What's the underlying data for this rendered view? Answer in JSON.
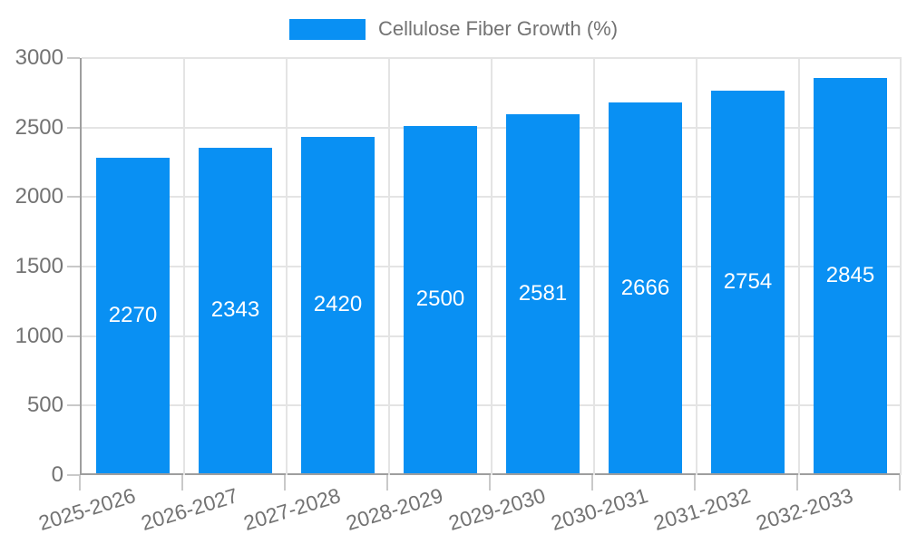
{
  "chart": {
    "legend_label": "Cellulose Fiber Growth (%)",
    "colors": {
      "bar": "#0990f3",
      "text": "#737373",
      "grid": "#e4e4e4",
      "axis": "#9e9e9e",
      "tick": "#c9c9c9",
      "bar_label": "#ffffff",
      "background": "#ffffff"
    }
  },
  "chart_data": {
    "type": "bar",
    "title": "Cellulose Fiber Growth (%)",
    "categories": [
      "2025-2026",
      "2026-2027",
      "2027-2028",
      "2028-2029",
      "2029-2030",
      "2030-2031",
      "2031-2032",
      "2032-2033"
    ],
    "values": [
      2270,
      2343,
      2420,
      2500,
      2581,
      2666,
      2754,
      2845
    ],
    "xlabel": "",
    "ylabel": "",
    "ylim": [
      0,
      3000
    ],
    "yticks": [
      0,
      500,
      1000,
      1500,
      2000,
      2500,
      3000
    ],
    "grid": true,
    "legend_position": "top",
    "legend_entries": [
      "Cellulose Fiber Growth (%)"
    ],
    "bar_value_labels": "inside-center"
  }
}
